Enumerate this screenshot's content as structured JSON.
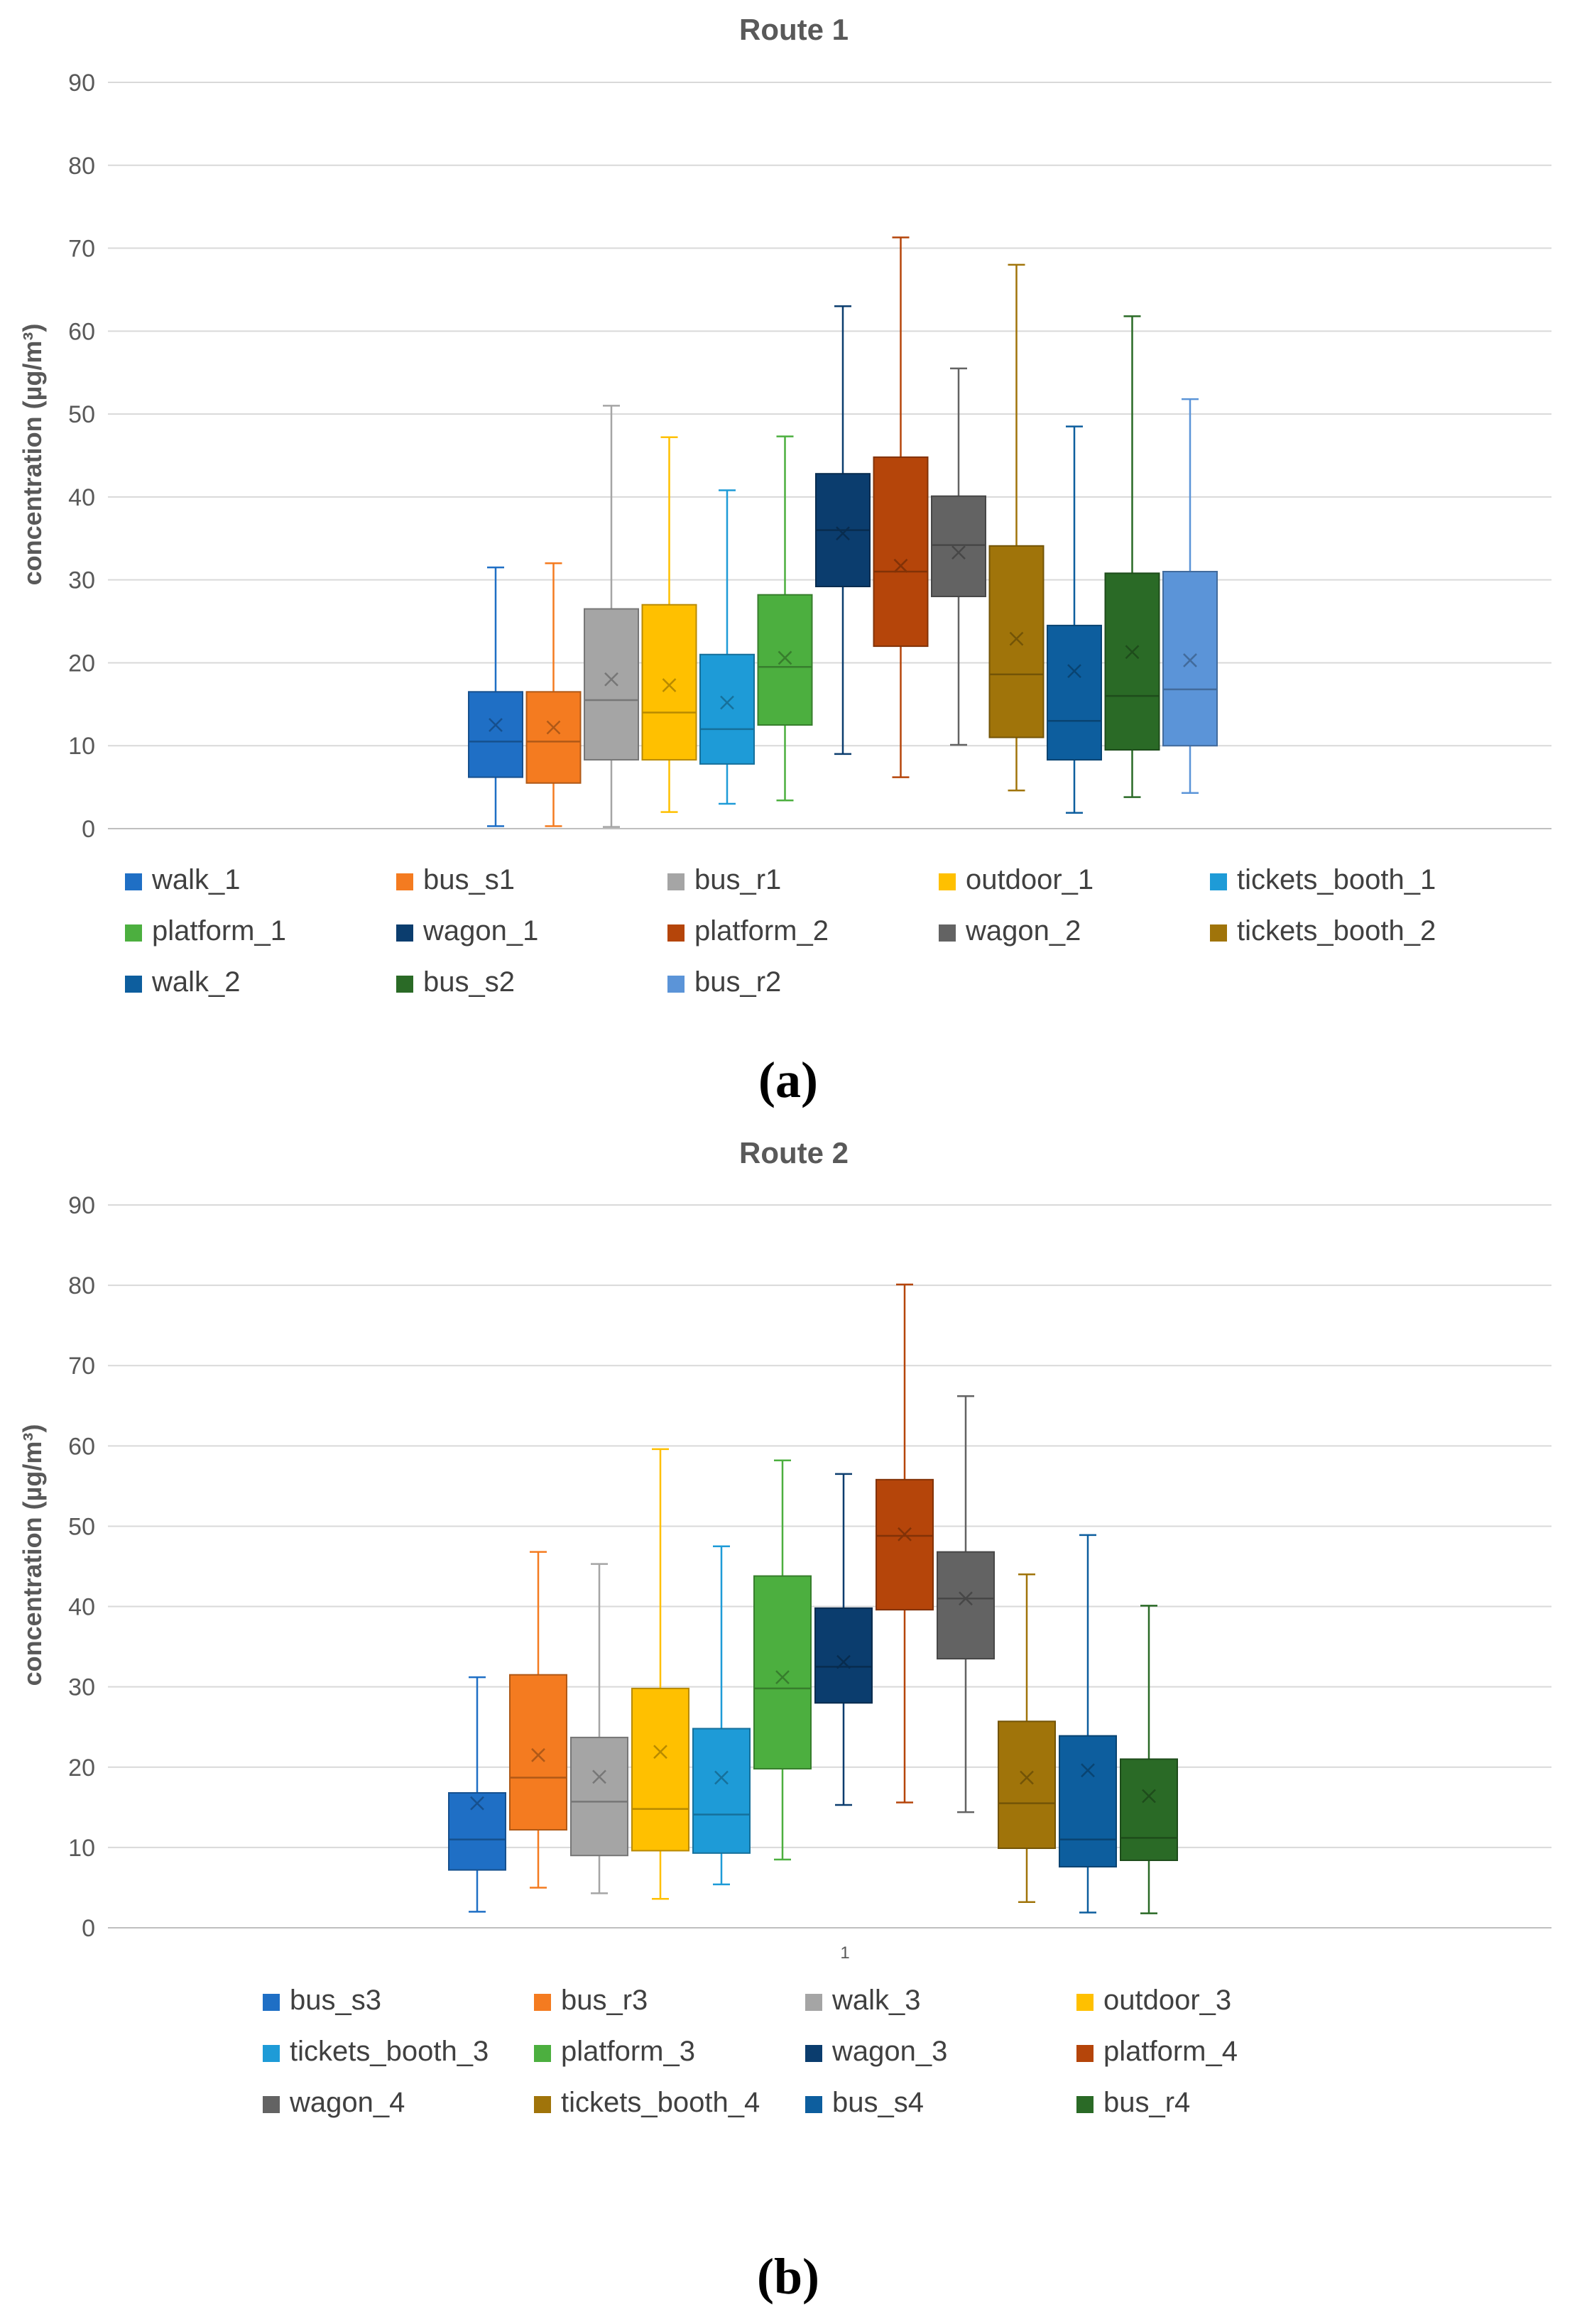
{
  "chart_data": [
    {
      "type": "box",
      "title": "Route 1",
      "ylabel": "concentration (µg/m³)",
      "xlabel": "",
      "x_tick": "",
      "ylim": [
        0,
        90
      ],
      "y_ticks": [
        "0",
        "10",
        "20",
        "30",
        "40",
        "50",
        "60",
        "70",
        "80",
        "90"
      ],
      "grid": true,
      "panel_label": "a",
      "series": [
        {
          "name": "walk_1",
          "color": "#1F6FC5",
          "min": 0.3,
          "q1": 6.2,
          "median": 10.5,
          "q3": 16.5,
          "max": 31.5,
          "mean": 12.5
        },
        {
          "name": "bus_s1",
          "color": "#F47B20",
          "min": 0.3,
          "q1": 5.5,
          "median": 10.5,
          "q3": 16.5,
          "max": 32.0,
          "mean": 12.2
        },
        {
          "name": "bus_r1",
          "color": "#A5A5A5",
          "min": 0.2,
          "q1": 8.3,
          "median": 15.5,
          "q3": 26.5,
          "max": 51.0,
          "mean": 18.0
        },
        {
          "name": "outdoor_1",
          "color": "#FFC000",
          "min": 2.0,
          "q1": 8.3,
          "median": 14.0,
          "q3": 27.0,
          "max": 47.2,
          "mean": 17.3
        },
        {
          "name": "tickets_booth_1",
          "color": "#1E9BD7",
          "min": 3.0,
          "q1": 7.8,
          "median": 12.0,
          "q3": 21.0,
          "max": 40.8,
          "mean": 15.2
        },
        {
          "name": "platform_1",
          "color": "#4CAF3F",
          "min": 3.4,
          "q1": 12.5,
          "median": 19.5,
          "q3": 28.2,
          "max": 47.3,
          "mean": 20.6
        },
        {
          "name": "wagon_1",
          "color": "#0B3D6E",
          "min": 9.0,
          "q1": 29.2,
          "median": 36.0,
          "q3": 42.8,
          "max": 63.0,
          "mean": 35.6
        },
        {
          "name": "platform_2",
          "color": "#B5450A",
          "min": 6.2,
          "q1": 22.0,
          "median": 31.0,
          "q3": 44.8,
          "max": 71.3,
          "mean": 31.7
        },
        {
          "name": "wagon_2",
          "color": "#636363",
          "min": 10.1,
          "q1": 28.0,
          "median": 34.2,
          "q3": 40.1,
          "max": 55.5,
          "mean": 33.3
        },
        {
          "name": "tickets_booth_2",
          "color": "#A0740A",
          "min": 4.6,
          "q1": 11.0,
          "median": 18.6,
          "q3": 34.1,
          "max": 68.0,
          "mean": 22.9
        },
        {
          "name": "walk_2",
          "color": "#0D5E9E",
          "min": 1.9,
          "q1": 8.3,
          "median": 13.0,
          "q3": 24.5,
          "max": 48.5,
          "mean": 19.0
        },
        {
          "name": "bus_s2",
          "color": "#2A6A26",
          "min": 3.8,
          "q1": 9.5,
          "median": 16.0,
          "q3": 30.8,
          "max": 61.8,
          "mean": 21.3
        },
        {
          "name": "bus_r2",
          "color": "#5B94D8",
          "min": 4.3,
          "q1": 10.0,
          "median": 16.8,
          "q3": 31.0,
          "max": 51.8,
          "mean": 20.3
        }
      ]
    },
    {
      "type": "box",
      "title": "Route 2",
      "ylabel": "concentration (µg/m³)",
      "xlabel": "",
      "x_tick": "1",
      "ylim": [
        0,
        90
      ],
      "y_ticks": [
        "0",
        "10",
        "20",
        "30",
        "40",
        "50",
        "60",
        "70",
        "80",
        "90"
      ],
      "grid": true,
      "panel_label": "b",
      "series": [
        {
          "name": "bus_s3",
          "color": "#1F6FC5",
          "min": 2.0,
          "q1": 7.2,
          "median": 11.0,
          "q3": 16.8,
          "max": 31.2,
          "mean": 15.5
        },
        {
          "name": "bus_r3",
          "color": "#F47B20",
          "min": 5.0,
          "q1": 12.2,
          "median": 18.7,
          "q3": 31.5,
          "max": 46.8,
          "mean": 21.5
        },
        {
          "name": "walk_3",
          "color": "#A5A5A5",
          "min": 4.3,
          "q1": 9.0,
          "median": 15.7,
          "q3": 23.7,
          "max": 45.3,
          "mean": 18.8
        },
        {
          "name": "outdoor_3",
          "color": "#FFC000",
          "min": 3.6,
          "q1": 9.6,
          "median": 14.8,
          "q3": 29.8,
          "max": 59.6,
          "mean": 21.9
        },
        {
          "name": "tickets_booth_3",
          "color": "#1E9BD7",
          "min": 5.4,
          "q1": 9.3,
          "median": 14.1,
          "q3": 24.8,
          "max": 47.5,
          "mean": 18.7
        },
        {
          "name": "platform_3",
          "color": "#4CAF3F",
          "min": 8.5,
          "q1": 19.8,
          "median": 29.8,
          "q3": 43.8,
          "max": 58.2,
          "mean": 31.2
        },
        {
          "name": "wagon_3",
          "color": "#0B3D6E",
          "min": 15.3,
          "q1": 28.0,
          "median": 32.5,
          "q3": 39.8,
          "max": 56.5,
          "mean": 33.1
        },
        {
          "name": "platform_4",
          "color": "#B5450A",
          "min": 15.6,
          "q1": 39.6,
          "median": 48.8,
          "q3": 55.8,
          "max": 80.1,
          "mean": 49.0
        },
        {
          "name": "wagon_4",
          "color": "#636363",
          "min": 14.4,
          "q1": 33.5,
          "median": 41.0,
          "q3": 46.8,
          "max": 66.2,
          "mean": 41.0
        },
        {
          "name": "tickets_booth_4",
          "color": "#A0740A",
          "min": 3.2,
          "q1": 9.9,
          "median": 15.5,
          "q3": 25.7,
          "max": 44.0,
          "mean": 18.7
        },
        {
          "name": "bus_s4",
          "color": "#0D5E9E",
          "min": 1.9,
          "q1": 7.6,
          "median": 11.0,
          "q3": 23.9,
          "max": 48.9,
          "mean": 19.6
        },
        {
          "name": "bus_r4",
          "color": "#2A6A26",
          "min": 1.8,
          "q1": 8.4,
          "median": 11.2,
          "q3": 21.0,
          "max": 40.1,
          "mean": 16.4
        }
      ]
    }
  ]
}
